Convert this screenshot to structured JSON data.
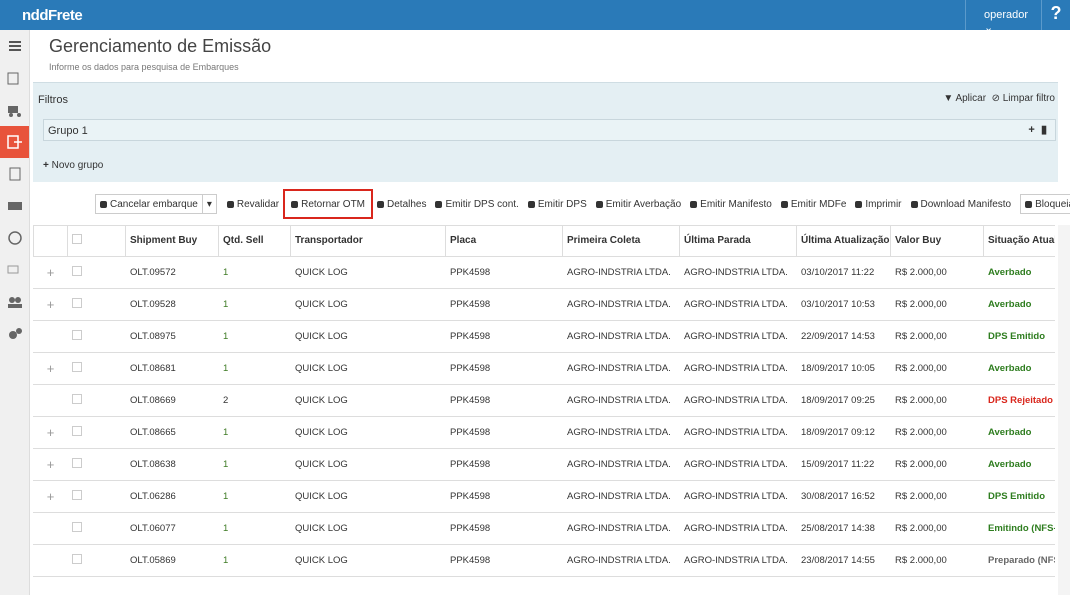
{
  "header": {
    "brand": "nddFrete",
    "user": "operador",
    "help": "?"
  },
  "page": {
    "title": "Gerenciamento de Emissão",
    "subtitle": "Informe os dados para pesquisa de Embarques"
  },
  "filters": {
    "label": "Filtros",
    "apply": "Aplicar",
    "clear": "Limpar filtro",
    "group": "Grupo 1",
    "new_group": "Novo grupo"
  },
  "toolbar": [
    "Cancelar embarque",
    "Revalidar",
    "Retornar OTM",
    "Detalhes",
    "Emitir DPS cont.",
    "Emitir DPS",
    "Emitir Averbação",
    "Emitir Manifesto",
    "Emitir MDFe",
    "Imprimir",
    "Download Manifesto",
    "Bloqueia DPSs"
  ],
  "table": {
    "columns": [
      "Shipment Buy",
      "Qtd. Sell",
      "Transportador",
      "Placa",
      "Primeira Coleta",
      "Última Parada",
      "Última Atualização",
      "Valor Buy",
      "Situação Atual"
    ],
    "rows": [
      {
        "expand": "+",
        "cells": [
          "OLT.09572",
          "1",
          "QUICK LOG",
          "PPK4598",
          "AGRO-INDSTRIA LTDA.",
          "AGRO-INDSTRIA LTDA.",
          "03/10/2017 11:22",
          "R$ 2.000,00",
          "Averbado"
        ],
        "status_color": "#2e7d1f"
      },
      {
        "expand": "+",
        "cells": [
          "OLT.09528",
          "1",
          "QUICK LOG",
          "PPK4598",
          "AGRO-INDSTRIA LTDA.",
          "AGRO-INDSTRIA LTDA.",
          "03/10/2017 10:53",
          "R$ 2.000,00",
          "Averbado"
        ],
        "status_color": "#2e7d1f"
      },
      {
        "expand": null,
        "cells": [
          "OLT.08975",
          "1",
          "QUICK LOG",
          "PPK4598",
          "AGRO-INDSTRIA LTDA.",
          "AGRO-INDSTRIA LTDA.",
          "22/09/2017 14:53",
          "R$ 2.000,00",
          "DPS Emitido"
        ],
        "status_color": "#2e7d1f"
      },
      {
        "expand": "+",
        "cells": [
          "OLT.08681",
          "1",
          "QUICK LOG",
          "PPK4598",
          "AGRO-INDSTRIA LTDA.",
          "AGRO-INDSTRIA LTDA.",
          "18/09/2017 10:05",
          "R$ 2.000,00",
          "Averbado"
        ],
        "status_color": "#2e7d1f"
      },
      {
        "expand": null,
        "cells": [
          "OLT.08669",
          "2",
          "QUICK LOG",
          "PPK4598",
          "AGRO-INDSTRIA LTDA.",
          "AGRO-INDSTRIA LTDA.",
          "18/09/2017 09:25",
          "R$ 2.000,00",
          "DPS Rejeitado"
        ],
        "status_color": "#d9261c"
      },
      {
        "expand": "+",
        "cells": [
          "OLT.08665",
          "1",
          "QUICK LOG",
          "PPK4598",
          "AGRO-INDSTRIA LTDA.",
          "AGRO-INDSTRIA LTDA.",
          "18/09/2017 09:12",
          "R$ 2.000,00",
          "Averbado"
        ],
        "status_color": "#2e7d1f"
      },
      {
        "expand": "+",
        "cells": [
          "OLT.08638",
          "1",
          "QUICK LOG",
          "PPK4598",
          "AGRO-INDSTRIA LTDA.",
          "AGRO-INDSTRIA LTDA.",
          "15/09/2017 11:22",
          "R$ 2.000,00",
          "Averbado"
        ],
        "status_color": "#2e7d1f"
      },
      {
        "expand": "+",
        "cells": [
          "OLT.06286",
          "1",
          "QUICK LOG",
          "PPK4598",
          "AGRO-INDSTRIA LTDA.",
          "AGRO-INDSTRIA LTDA.",
          "30/08/2017 16:52",
          "R$ 2.000,00",
          "DPS Emitido"
        ],
        "status_color": "#2e7d1f"
      },
      {
        "expand": null,
        "cells": [
          "OLT.06077",
          "1",
          "QUICK LOG",
          "PPK4598",
          "AGRO-INDSTRIA LTDA.",
          "AGRO-INDSTRIA LTDA.",
          "25/08/2017 14:38",
          "R$ 2.000,00",
          "Emitindo (NFS-e)"
        ],
        "status_color": "#2e7d1f"
      },
      {
        "expand": null,
        "cells": [
          "OLT.05869",
          "1",
          "QUICK LOG",
          "PPK4598",
          "AGRO-INDSTRIA LTDA.",
          "AGRO-INDSTRIA LTDA.",
          "23/08/2017 14:55",
          "R$ 2.000,00",
          "Preparado (NFS-e)"
        ],
        "status_color": "#666666"
      }
    ]
  }
}
